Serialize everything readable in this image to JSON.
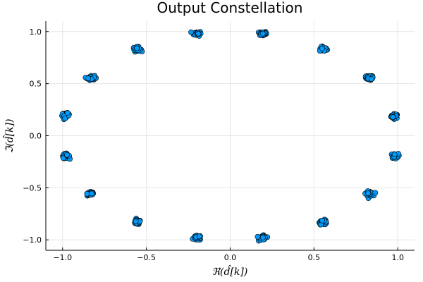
{
  "chart_data": {
    "type": "scatter",
    "title": "Output Constellation",
    "xlabel": "ℜ(d̂[k])",
    "ylabel": "ℑ(d̂[k])",
    "xlim": [
      -1.1,
      1.1
    ],
    "ylim": [
      -1.1,
      1.1
    ],
    "xticks": [
      -1.0,
      -0.5,
      0.0,
      0.5,
      1.0
    ],
    "xtick_labels": [
      "−1.0",
      "−0.5",
      "0.0",
      "0.5",
      "1.0"
    ],
    "yticks": [
      -1.0,
      -0.5,
      0.0,
      0.5,
      1.0
    ],
    "ytick_labels": [
      "−1.0",
      "−0.5",
      "0.0",
      "0.5",
      "1.0"
    ],
    "grid": true,
    "legend": "none",
    "marker_color": "#009AFA",
    "clusters": [
      {
        "x": 0.982,
        "y": 0.188
      },
      {
        "x": 0.831,
        "y": 0.556
      },
      {
        "x": 0.556,
        "y": 0.831
      },
      {
        "x": 0.195,
        "y": 0.981
      },
      {
        "x": -0.195,
        "y": 0.981
      },
      {
        "x": -0.556,
        "y": 0.831
      },
      {
        "x": -0.831,
        "y": 0.556
      },
      {
        "x": -0.981,
        "y": 0.195
      },
      {
        "x": -0.981,
        "y": -0.195
      },
      {
        "x": -0.831,
        "y": -0.556
      },
      {
        "x": -0.556,
        "y": -0.831
      },
      {
        "x": -0.195,
        "y": -0.981
      },
      {
        "x": 0.195,
        "y": -0.981
      },
      {
        "x": 0.556,
        "y": -0.831
      },
      {
        "x": 0.831,
        "y": -0.556
      },
      {
        "x": 0.981,
        "y": -0.195
      }
    ]
  }
}
